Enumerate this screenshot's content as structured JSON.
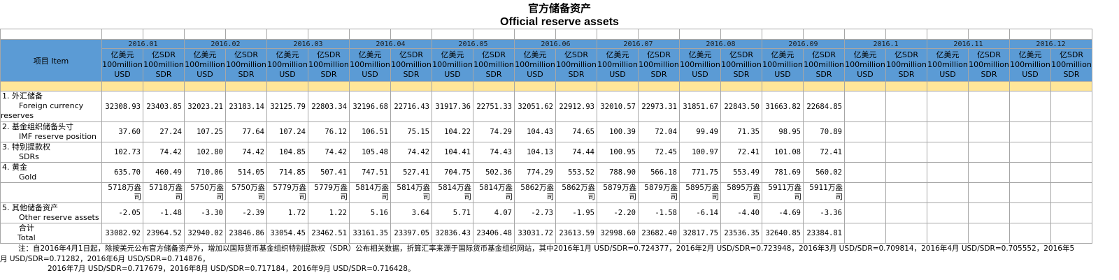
{
  "title_cn": "官方储备资产",
  "title_en": "Official reserve assets",
  "item_header": "项目    Item",
  "units": {
    "usd": "亿美元 100million USD",
    "sdr": "亿SDR 100million SDR"
  },
  "months": [
    "2016.01",
    "2016.02",
    "2016.03",
    "2016.04",
    "2016.05",
    "2016.06",
    "2016.07",
    "2016.08",
    "2016.09",
    "2016.1",
    "2016.11",
    "2016.12"
  ],
  "rows": {
    "fx": {
      "cn": "1. 外汇储备",
      "en": "Foreign currency reserves",
      "values": [
        "32308.93",
        "23403.85",
        "32023.21",
        "23183.14",
        "32125.79",
        "22803.34",
        "32196.68",
        "22716.43",
        "31917.36",
        "22751.33",
        "32051.62",
        "22912.93",
        "32010.57",
        "22973.31",
        "31851.67",
        "22843.50",
        "31663.82",
        "22684.85"
      ]
    },
    "imf": {
      "cn": "2. 基金组织储备头寸",
      "en": "IMF reserve position",
      "values": [
        "37.60",
        "27.24",
        "107.25",
        "77.64",
        "107.24",
        "76.12",
        "106.51",
        "75.15",
        "104.22",
        "74.29",
        "104.43",
        "74.65",
        "100.39",
        "72.04",
        "99.49",
        "71.35",
        "98.95",
        "70.89"
      ]
    },
    "sdrs": {
      "cn": "3. 特别提款权",
      "en": "SDRs",
      "values": [
        "102.73",
        "74.42",
        "102.80",
        "74.42",
        "104.85",
        "74.42",
        "105.48",
        "74.42",
        "104.41",
        "74.43",
        "104.13",
        "74.44",
        "100.95",
        "72.45",
        "100.97",
        "72.41",
        "101.08",
        "72.41"
      ]
    },
    "gold": {
      "cn": "4. 黄金",
      "en": "Gold",
      "values": [
        "635.70",
        "460.49",
        "710.06",
        "514.05",
        "714.85",
        "507.41",
        "747.51",
        "527.41",
        "704.75",
        "502.36",
        "774.29",
        "553.52",
        "788.90",
        "566.18",
        "771.75",
        "553.49",
        "781.69",
        "560.02"
      ]
    },
    "gold_oz": {
      "values": [
        "5718万盎司",
        "5718万盎司",
        "5750万盎司",
        "5750万盎司",
        "5779万盎司",
        "5779万盎司",
        "5814万盎司",
        "5814万盎司",
        "5814万盎司",
        "5814万盎司",
        "5862万盎司",
        "5862万盎司",
        "5879万盎司",
        "5879万盎司",
        "5895万盎司",
        "5895万盎司",
        "5911万盎司",
        "5911万盎司"
      ]
    },
    "other": {
      "cn": "5. 其他储备资产",
      "en": "Other reserve assets",
      "values": [
        "-2.05",
        "-1.48",
        "-3.30",
        "-2.39",
        "1.72",
        "1.22",
        "5.16",
        "3.64",
        "5.71",
        "4.07",
        "-2.73",
        "-1.95",
        "-2.20",
        "-1.58",
        "-6.14",
        "-4.40",
        "-4.69",
        "-3.36"
      ]
    },
    "total": {
      "cn": "合计",
      "en": "Total",
      "values": [
        "33082.92",
        "23964.52",
        "32940.02",
        "23846.86",
        "33054.45",
        "23462.51",
        "33161.35",
        "23397.05",
        "32836.43",
        "23406.48",
        "33031.72",
        "23613.59",
        "32998.60",
        "23682.40",
        "32817.75",
        "23536.35",
        "32640.85",
        "23384.81"
      ]
    }
  },
  "note": {
    "line1": "注：自2016年4月1日起，除按美元公布官方储备资产外，增加以国际货币基金组织特别提款权（SDR）公布相关数据，折算汇率来源于国际货币基金组织网站，其中2016年1月 USD/SDR=0.724377，2016年2月 USD/SDR=0.723948，2016年3月 USD/SDR=0.709814，2016年4月 USD/SDR=0.705552，2016年5",
    "line2": "月 USD/SDR=0.71282，2016年6月 USD/SDR=0.714876，",
    "line3": "2016年7月 USD/SDR=0.717679，2016年8月 USD/SDR=0.717184，2016年9月 USD/SDR=0.716428。"
  }
}
